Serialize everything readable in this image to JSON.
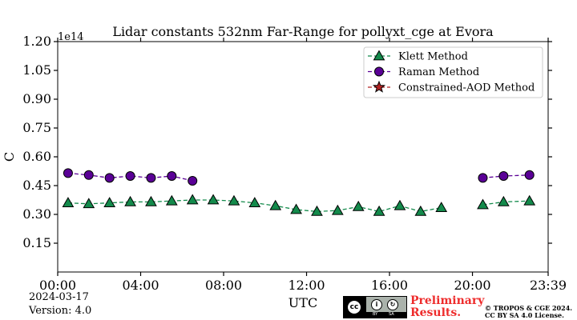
{
  "chart_data": {
    "type": "line",
    "title": "Lidar constants 532nm Far-Range for pollyxt_cge at Evora",
    "xlabel": "UTC",
    "ylabel": "C",
    "y_scale_label": "1e14",
    "xlim": [
      0,
      23.65
    ],
    "ylim": [
      0,
      1.2
    ],
    "xticks": [
      0,
      4,
      8,
      12,
      16,
      20,
      23.65
    ],
    "xtick_labels": [
      "00:00",
      "04:00",
      "08:00",
      "12:00",
      "16:00",
      "20:00",
      "23:39"
    ],
    "yticks": [
      0.15,
      0.3,
      0.45,
      0.6,
      0.75,
      0.9,
      1.05,
      1.2
    ],
    "ytick_labels": [
      "0.15",
      "0.30",
      "0.45",
      "0.60",
      "0.75",
      "0.90",
      "1.05",
      "1.20"
    ],
    "legend_position": "top-right",
    "series": [
      {
        "name": "Klett Method",
        "marker": "triangle",
        "color": "#138a4b",
        "segments": [
          [
            [
              0.5,
              0.36
            ],
            [
              1.5,
              0.355
            ],
            [
              2.5,
              0.36
            ],
            [
              3.5,
              0.365
            ],
            [
              4.5,
              0.365
            ],
            [
              5.5,
              0.37
            ],
            [
              6.5,
              0.375
            ],
            [
              7.5,
              0.375
            ],
            [
              8.5,
              0.37
            ],
            [
              9.5,
              0.36
            ],
            [
              10.5,
              0.345
            ],
            [
              11.5,
              0.325
            ],
            [
              12.5,
              0.315
            ],
            [
              13.5,
              0.32
            ],
            [
              14.5,
              0.34
            ],
            [
              15.5,
              0.315
            ],
            [
              16.5,
              0.345
            ],
            [
              17.5,
              0.315
            ],
            [
              18.5,
              0.335
            ]
          ],
          [
            [
              20.5,
              0.35
            ],
            [
              21.5,
              0.365
            ],
            [
              22.75,
              0.37
            ]
          ]
        ]
      },
      {
        "name": "Raman Method",
        "marker": "circle",
        "color": "#5a0096",
        "segments": [
          [
            [
              0.5,
              0.515
            ],
            [
              1.5,
              0.505
            ],
            [
              2.5,
              0.49
            ],
            [
              3.5,
              0.5
            ],
            [
              4.5,
              0.49
            ],
            [
              5.5,
              0.5
            ],
            [
              6.5,
              0.475
            ]
          ],
          [
            [
              20.5,
              0.49
            ],
            [
              21.5,
              0.5
            ],
            [
              22.75,
              0.505
            ]
          ]
        ]
      },
      {
        "name": "Constrained-AOD Method",
        "marker": "star",
        "color": "#b22222",
        "segments": []
      }
    ]
  },
  "footer": {
    "date": "2024-03-17",
    "version": "Version: 4.0",
    "preliminary": [
      "Preliminary",
      "Results."
    ],
    "copyright": [
      "© TROPOS & CGE 2024.",
      "CC BY SA 4.0 License."
    ],
    "cc_badge": {
      "main": "cc",
      "by": "BY",
      "sa": "SA"
    }
  }
}
